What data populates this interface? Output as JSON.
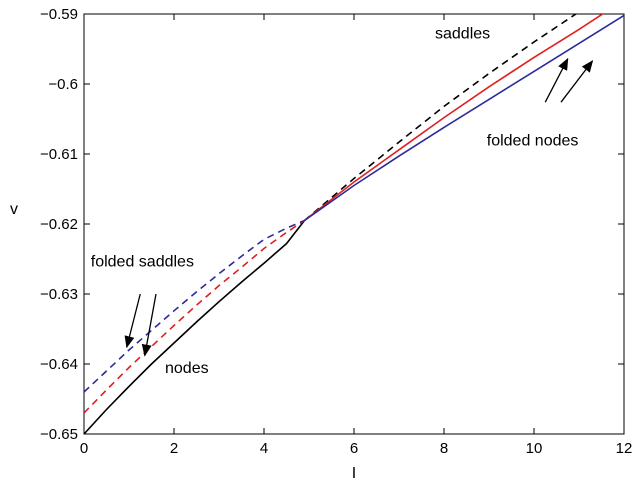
{
  "chart_data": {
    "type": "line",
    "xlabel": "I",
    "ylabel": "v",
    "xlim": [
      0,
      12
    ],
    "ylim": [
      -0.65,
      -0.59
    ],
    "x_ticks": [
      0,
      2,
      4,
      6,
      8,
      10,
      12
    ],
    "x_tick_labels": [
      "0",
      "2",
      "4",
      "6",
      "8",
      "10",
      "12"
    ],
    "y_ticks": [
      -0.65,
      -0.64,
      -0.63,
      -0.62,
      -0.61,
      -0.6,
      -0.59
    ],
    "y_tick_labels": [
      "−0.65",
      "−0.64",
      "−0.63",
      "−0.62",
      "−0.61",
      "−0.6",
      "−0.59"
    ],
    "series": [
      {
        "color": "#000000",
        "dash": "solid",
        "x": [
          0,
          0.5,
          1,
          1.5,
          2,
          2.5,
          3,
          3.5,
          4,
          4.5,
          4.9
        ],
        "y": [
          -0.65,
          -0.6465,
          -0.6432,
          -0.64,
          -0.637,
          -0.634,
          -0.6311,
          -0.6283,
          -0.6256,
          -0.6228,
          -0.6195
        ]
      },
      {
        "color": "#000000",
        "dash": "dashed",
        "x": [
          4.9,
          6,
          7,
          8,
          9,
          10,
          11,
          12
        ],
        "y": [
          -0.6195,
          -0.6135,
          -0.6083,
          -0.6032,
          -0.5985,
          -0.594,
          -0.5897,
          -0.5858
        ]
      },
      {
        "color": "#e02020",
        "dash": "solid",
        "x": [
          4.9,
          6,
          7,
          8,
          9,
          10,
          11,
          12
        ],
        "y": [
          -0.6195,
          -0.614,
          -0.6094,
          -0.6048,
          -0.6004,
          -0.5962,
          -0.5922,
          -0.588
        ]
      },
      {
        "color": "#e02020",
        "dash": "dashed",
        "x": [
          0,
          0.5,
          1,
          1.5,
          2,
          2.5,
          3,
          3.5,
          4,
          4.5,
          4.9
        ],
        "y": [
          -0.647,
          -0.6437,
          -0.6405,
          -0.6375,
          -0.6345,
          -0.6316,
          -0.6288,
          -0.6262,
          -0.6235,
          -0.6212,
          -0.6195
        ]
      },
      {
        "color": "#2b2b9a",
        "dash": "solid",
        "x": [
          4.9,
          6,
          7,
          8,
          9,
          10,
          11,
          12
        ],
        "y": [
          -0.6195,
          -0.6145,
          -0.6103,
          -0.6062,
          -0.6022,
          -0.5982,
          -0.5942,
          -0.5902
        ]
      },
      {
        "color": "#2b2b9a",
        "dash": "dashed",
        "x": [
          0,
          0.5,
          1,
          1.5,
          2,
          2.5,
          3,
          3.5,
          4,
          4.5,
          4.9
        ],
        "y": [
          -0.644,
          -0.641,
          -0.638,
          -0.6352,
          -0.6324,
          -0.6297,
          -0.6271,
          -0.6246,
          -0.6222,
          -0.6206,
          -0.6195
        ]
      }
    ],
    "annotations": [
      {
        "text": "saddles",
        "x": 7.8,
        "y": -0.5935
      },
      {
        "text": "folded nodes",
        "x": 8.95,
        "y": -0.6088
      },
      {
        "text": "folded saddles",
        "x": 0.15,
        "y": -0.6261
      },
      {
        "text": "nodes",
        "x": 1.8,
        "y": -0.6413
      }
    ],
    "arrows": [
      {
        "from": [
          10.25,
          -0.6026
        ],
        "to": [
          10.75,
          -0.5964
        ]
      },
      {
        "from": [
          10.6,
          -0.6026
        ],
        "to": [
          11.3,
          -0.5967
        ]
      },
      {
        "from": [
          1.25,
          -0.63
        ],
        "to": [
          0.95,
          -0.6376
        ]
      },
      {
        "from": [
          1.6,
          -0.63
        ],
        "to": [
          1.35,
          -0.6388
        ]
      }
    ]
  }
}
